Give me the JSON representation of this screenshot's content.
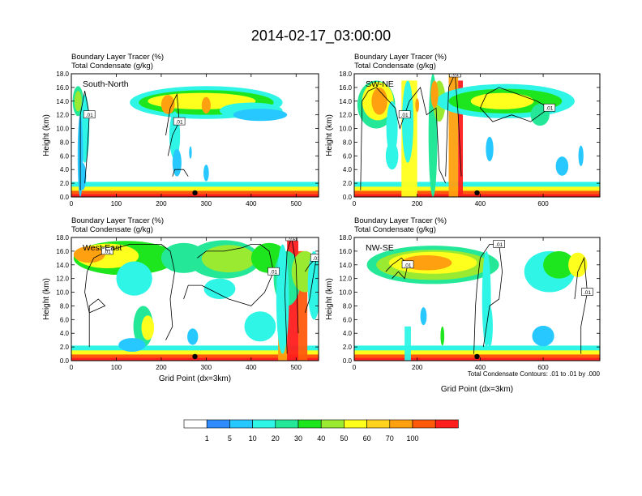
{
  "chart_data": [
    {
      "type": "heatmap",
      "panel_label": "South-North",
      "title_lines": [
        "Boundary Layer Tracer   (%)",
        "Total Condensate   (g/kg)"
      ],
      "ylabel": "Height (km)",
      "xlim": [
        0,
        550
      ],
      "ylim": [
        0,
        18
      ],
      "x_ticks": [
        "0",
        "100",
        "200",
        "300",
        "400",
        "500"
      ],
      "y_ticks": [
        "0.0",
        "2.0",
        "4.0",
        "6.0",
        "8.0",
        "10.0",
        "12.0",
        "14.0",
        "16.0",
        "18.0"
      ],
      "contour_labels": [
        ".01",
        ".01"
      ],
      "xlabel": ""
    },
    {
      "type": "heatmap",
      "panel_label": "SW-NE",
      "title_lines": [
        "Boundary Layer Tracer   (%)",
        "Total Condensate   (g/kg)"
      ],
      "ylabel": "Height (km)",
      "xlim": [
        0,
        780
      ],
      "ylim": [
        0,
        18
      ],
      "x_ticks": [
        "0",
        "200",
        "400",
        "600"
      ],
      "y_ticks": [
        "0.0",
        "2.0",
        "4.0",
        "6.0",
        "8.0",
        "10.0",
        "12.0",
        "14.0",
        "16.0",
        "18.0"
      ],
      "contour_labels": [
        ".01",
        ".01",
        ".01"
      ],
      "xlabel": ""
    },
    {
      "type": "heatmap",
      "panel_label": "West-East",
      "title_lines": [
        "Boundary Layer Tracer   (%)",
        "Total Condensate   (g/kg)"
      ],
      "ylabel": "Height (km)",
      "xlim": [
        0,
        550
      ],
      "ylim": [
        0,
        18
      ],
      "x_ticks": [
        "0",
        "100",
        "200",
        "300",
        "400",
        "500"
      ],
      "y_ticks": [
        "0.0",
        "2.0",
        "4.0",
        "6.0",
        "8.0",
        "10.0",
        "12.0",
        "14.0",
        "16.0",
        "18.0"
      ],
      "contour_labels": [
        ".01",
        ".01",
        ".01",
        ".01"
      ],
      "xlabel": "Grid Point (dx=3km)"
    },
    {
      "type": "heatmap",
      "panel_label": "NW-SE",
      "title_lines": [
        "Boundary Layer Tracer   (%)",
        "Total Condensate   (g/kg)"
      ],
      "ylabel": "Height (km)",
      "xlim": [
        0,
        780
      ],
      "ylim": [
        0,
        18
      ],
      "x_ticks": [
        "0",
        "200",
        "400",
        "600"
      ],
      "y_ticks": [
        "0.0",
        "2.0",
        "4.0",
        "6.0",
        "8.0",
        "10.0",
        "12.0",
        "14.0",
        "16.0",
        "18.0"
      ],
      "contour_labels": [
        ".01",
        ".01",
        ".01"
      ],
      "xlabel": "Grid Point (dx=3km)"
    }
  ],
  "figure": {
    "title": "2014-02-17_03:00:00",
    "contour_note": "Total Condensate Contours: .01 to .01 by .000"
  },
  "colorbar": {
    "labels": [
      "1",
      "5",
      "10",
      "20",
      "30",
      "40",
      "50",
      "60",
      "70",
      "100"
    ],
    "colors": [
      "#ffffff",
      "#2f8cff",
      "#27c8ff",
      "#2ef5e6",
      "#24e898",
      "#1ee61e",
      "#9bea32",
      "#ffff1e",
      "#ffd21e",
      "#ffa010",
      "#ff5a0c",
      "#ff1e1e"
    ]
  }
}
